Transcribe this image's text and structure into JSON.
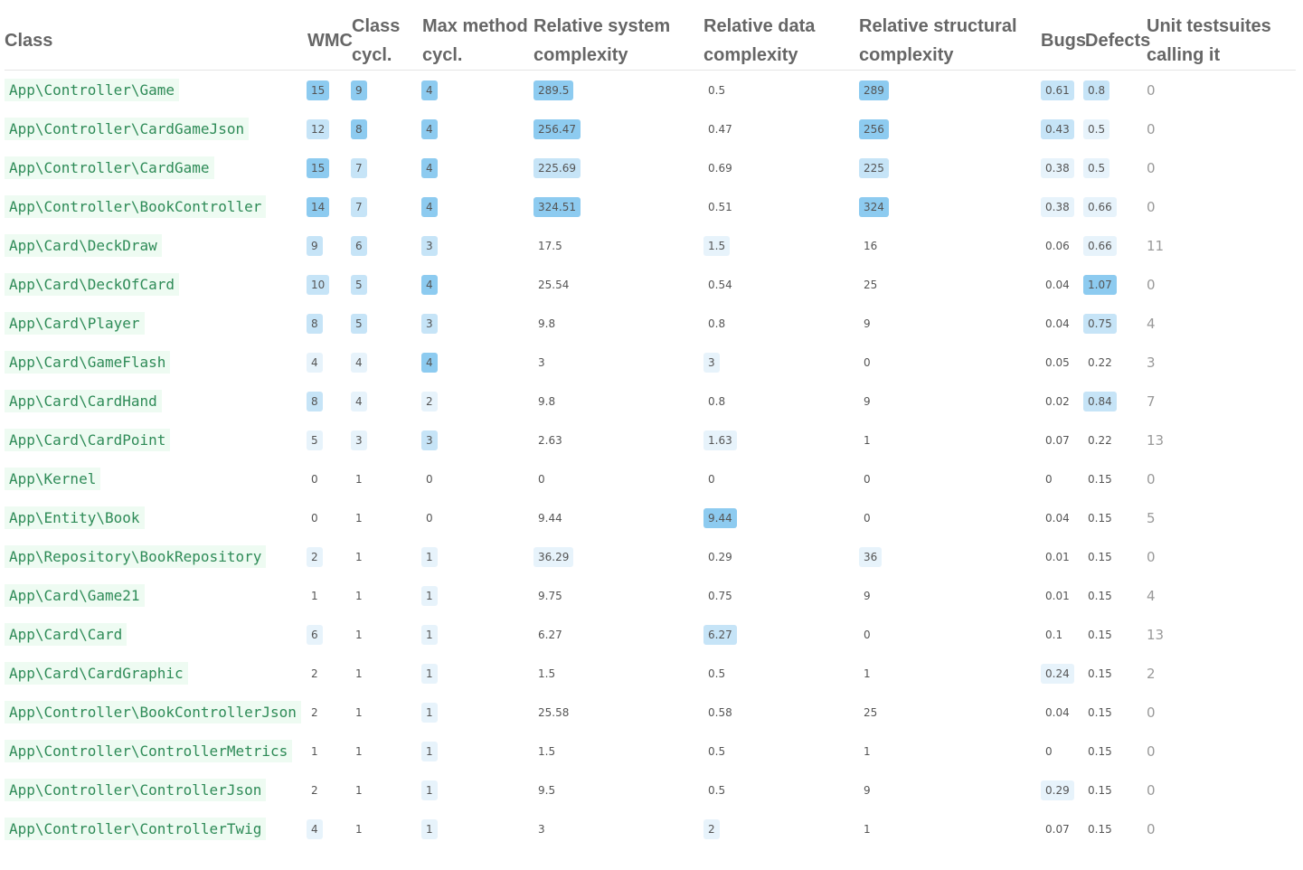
{
  "headers": {
    "class": "Class",
    "wmc": "WMC",
    "class_cycl": [
      "Class",
      "cycl."
    ],
    "max_method_cycl": [
      "Max method",
      "cycl."
    ],
    "rel_system": [
      "Relative system",
      "complexity"
    ],
    "rel_data": [
      "Relative data",
      "complexity"
    ],
    "rel_structural": [
      "Relative structural",
      "complexity"
    ],
    "bugs": "Bugs",
    "defects": "Defects",
    "unit_testsuites": [
      "Unit testsuites",
      "calling it"
    ]
  },
  "highlight_colors": {
    "none": "transparent",
    "light": "#e7f3fb",
    "medium": "#c6e4f7",
    "strong": "#8dcbf0",
    "class_text": "#2e8b57",
    "class_bg": "#eefbf2"
  },
  "rows": [
    {
      "class": "App\\Controller\\Game",
      "wmc": "15",
      "wmc_lvl": 3,
      "cc": "9",
      "cc_lvl": 3,
      "mmc": "4",
      "mmc_lvl": 3,
      "sys": "289.5",
      "sys_lvl": 3,
      "data": "0.5",
      "data_lvl": 0,
      "struct": "289",
      "struct_lvl": 3,
      "bugs": "0.61",
      "bugs_lvl": 2,
      "defects": "0.8",
      "defects_lvl": 2,
      "tests": "0"
    },
    {
      "class": "App\\Controller\\CardGameJson",
      "wmc": "12",
      "wmc_lvl": 2,
      "cc": "8",
      "cc_lvl": 3,
      "mmc": "4",
      "mmc_lvl": 3,
      "sys": "256.47",
      "sys_lvl": 3,
      "data": "0.47",
      "data_lvl": 0,
      "struct": "256",
      "struct_lvl": 3,
      "bugs": "0.43",
      "bugs_lvl": 2,
      "defects": "0.5",
      "defects_lvl": 1,
      "tests": "0"
    },
    {
      "class": "App\\Controller\\CardGame",
      "wmc": "15",
      "wmc_lvl": 3,
      "cc": "7",
      "cc_lvl": 2,
      "mmc": "4",
      "mmc_lvl": 3,
      "sys": "225.69",
      "sys_lvl": 2,
      "data": "0.69",
      "data_lvl": 0,
      "struct": "225",
      "struct_lvl": 2,
      "bugs": "0.38",
      "bugs_lvl": 1,
      "defects": "0.5",
      "defects_lvl": 1,
      "tests": "0"
    },
    {
      "class": "App\\Controller\\BookController",
      "wmc": "14",
      "wmc_lvl": 3,
      "cc": "7",
      "cc_lvl": 2,
      "mmc": "4",
      "mmc_lvl": 3,
      "sys": "324.51",
      "sys_lvl": 3,
      "data": "0.51",
      "data_lvl": 0,
      "struct": "324",
      "struct_lvl": 3,
      "bugs": "0.38",
      "bugs_lvl": 1,
      "defects": "0.66",
      "defects_lvl": 1,
      "tests": "0"
    },
    {
      "class": "App\\Card\\DeckDraw",
      "wmc": "9",
      "wmc_lvl": 2,
      "cc": "6",
      "cc_lvl": 2,
      "mmc": "3",
      "mmc_lvl": 2,
      "sys": "17.5",
      "sys_lvl": 0,
      "data": "1.5",
      "data_lvl": 1,
      "struct": "16",
      "struct_lvl": 0,
      "bugs": "0.06",
      "bugs_lvl": 0,
      "defects": "0.66",
      "defects_lvl": 1,
      "tests": "11"
    },
    {
      "class": "App\\Card\\DeckOfCard",
      "wmc": "10",
      "wmc_lvl": 2,
      "cc": "5",
      "cc_lvl": 2,
      "mmc": "4",
      "mmc_lvl": 3,
      "sys": "25.54",
      "sys_lvl": 0,
      "data": "0.54",
      "data_lvl": 0,
      "struct": "25",
      "struct_lvl": 0,
      "bugs": "0.04",
      "bugs_lvl": 0,
      "defects": "1.07",
      "defects_lvl": 3,
      "tests": "0"
    },
    {
      "class": "App\\Card\\Player",
      "wmc": "8",
      "wmc_lvl": 2,
      "cc": "5",
      "cc_lvl": 2,
      "mmc": "3",
      "mmc_lvl": 2,
      "sys": "9.8",
      "sys_lvl": 0,
      "data": "0.8",
      "data_lvl": 0,
      "struct": "9",
      "struct_lvl": 0,
      "bugs": "0.04",
      "bugs_lvl": 0,
      "defects": "0.75",
      "defects_lvl": 2,
      "tests": "4"
    },
    {
      "class": "App\\Card\\GameFlash",
      "wmc": "4",
      "wmc_lvl": 1,
      "cc": "4",
      "cc_lvl": 1,
      "mmc": "4",
      "mmc_lvl": 3,
      "sys": "3",
      "sys_lvl": 0,
      "data": "3",
      "data_lvl": 1,
      "struct": "0",
      "struct_lvl": 0,
      "bugs": "0.05",
      "bugs_lvl": 0,
      "defects": "0.22",
      "defects_lvl": 0,
      "tests": "3"
    },
    {
      "class": "App\\Card\\CardHand",
      "wmc": "8",
      "wmc_lvl": 2,
      "cc": "4",
      "cc_lvl": 1,
      "mmc": "2",
      "mmc_lvl": 1,
      "sys": "9.8",
      "sys_lvl": 0,
      "data": "0.8",
      "data_lvl": 0,
      "struct": "9",
      "struct_lvl": 0,
      "bugs": "0.02",
      "bugs_lvl": 0,
      "defects": "0.84",
      "defects_lvl": 2,
      "tests": "7"
    },
    {
      "class": "App\\Card\\CardPoint",
      "wmc": "5",
      "wmc_lvl": 1,
      "cc": "3",
      "cc_lvl": 1,
      "mmc": "3",
      "mmc_lvl": 2,
      "sys": "2.63",
      "sys_lvl": 0,
      "data": "1.63",
      "data_lvl": 1,
      "struct": "1",
      "struct_lvl": 0,
      "bugs": "0.07",
      "bugs_lvl": 0,
      "defects": "0.22",
      "defects_lvl": 0,
      "tests": "13"
    },
    {
      "class": "App\\Kernel",
      "wmc": "0",
      "wmc_lvl": 0,
      "cc": "1",
      "cc_lvl": 0,
      "mmc": "0",
      "mmc_lvl": 0,
      "sys": "0",
      "sys_lvl": 0,
      "data": "0",
      "data_lvl": 0,
      "struct": "0",
      "struct_lvl": 0,
      "bugs": "0",
      "bugs_lvl": 0,
      "defects": "0.15",
      "defects_lvl": 0,
      "tests": "0"
    },
    {
      "class": "App\\Entity\\Book",
      "wmc": "0",
      "wmc_lvl": 0,
      "cc": "1",
      "cc_lvl": 0,
      "mmc": "0",
      "mmc_lvl": 0,
      "sys": "9.44",
      "sys_lvl": 0,
      "data": "9.44",
      "data_lvl": 3,
      "struct": "0",
      "struct_lvl": 0,
      "bugs": "0.04",
      "bugs_lvl": 0,
      "defects": "0.15",
      "defects_lvl": 0,
      "tests": "5"
    },
    {
      "class": "App\\Repository\\BookRepository",
      "wmc": "2",
      "wmc_lvl": 1,
      "cc": "1",
      "cc_lvl": 0,
      "mmc": "1",
      "mmc_lvl": 1,
      "sys": "36.29",
      "sys_lvl": 1,
      "data": "0.29",
      "data_lvl": 0,
      "struct": "36",
      "struct_lvl": 1,
      "bugs": "0.01",
      "bugs_lvl": 0,
      "defects": "0.15",
      "defects_lvl": 0,
      "tests": "0"
    },
    {
      "class": "App\\Card\\Game21",
      "wmc": "1",
      "wmc_lvl": 0,
      "cc": "1",
      "cc_lvl": 0,
      "mmc": "1",
      "mmc_lvl": 1,
      "sys": "9.75",
      "sys_lvl": 0,
      "data": "0.75",
      "data_lvl": 0,
      "struct": "9",
      "struct_lvl": 0,
      "bugs": "0.01",
      "bugs_lvl": 0,
      "defects": "0.15",
      "defects_lvl": 0,
      "tests": "4"
    },
    {
      "class": "App\\Card\\Card",
      "wmc": "6",
      "wmc_lvl": 1,
      "cc": "1",
      "cc_lvl": 0,
      "mmc": "1",
      "mmc_lvl": 1,
      "sys": "6.27",
      "sys_lvl": 0,
      "data": "6.27",
      "data_lvl": 2,
      "struct": "0",
      "struct_lvl": 0,
      "bugs": "0.1",
      "bugs_lvl": 0,
      "defects": "0.15",
      "defects_lvl": 0,
      "tests": "13"
    },
    {
      "class": "App\\Card\\CardGraphic",
      "wmc": "2",
      "wmc_lvl": 0,
      "cc": "1",
      "cc_lvl": 0,
      "mmc": "1",
      "mmc_lvl": 1,
      "sys": "1.5",
      "sys_lvl": 0,
      "data": "0.5",
      "data_lvl": 0,
      "struct": "1",
      "struct_lvl": 0,
      "bugs": "0.24",
      "bugs_lvl": 1,
      "defects": "0.15",
      "defects_lvl": 0,
      "tests": "2"
    },
    {
      "class": "App\\Controller\\BookControllerJson",
      "wmc": "2",
      "wmc_lvl": 0,
      "cc": "1",
      "cc_lvl": 0,
      "mmc": "1",
      "mmc_lvl": 1,
      "sys": "25.58",
      "sys_lvl": 0,
      "data": "0.58",
      "data_lvl": 0,
      "struct": "25",
      "struct_lvl": 0,
      "bugs": "0.04",
      "bugs_lvl": 0,
      "defects": "0.15",
      "defects_lvl": 0,
      "tests": "0"
    },
    {
      "class": "App\\Controller\\ControllerMetrics",
      "wmc": "1",
      "wmc_lvl": 0,
      "cc": "1",
      "cc_lvl": 0,
      "mmc": "1",
      "mmc_lvl": 1,
      "sys": "1.5",
      "sys_lvl": 0,
      "data": "0.5",
      "data_lvl": 0,
      "struct": "1",
      "struct_lvl": 0,
      "bugs": "0",
      "bugs_lvl": 0,
      "defects": "0.15",
      "defects_lvl": 0,
      "tests": "0"
    },
    {
      "class": "App\\Controller\\ControllerJson",
      "wmc": "2",
      "wmc_lvl": 0,
      "cc": "1",
      "cc_lvl": 0,
      "mmc": "1",
      "mmc_lvl": 1,
      "sys": "9.5",
      "sys_lvl": 0,
      "data": "0.5",
      "data_lvl": 0,
      "struct": "9",
      "struct_lvl": 0,
      "bugs": "0.29",
      "bugs_lvl": 1,
      "defects": "0.15",
      "defects_lvl": 0,
      "tests": "0"
    },
    {
      "class": "App\\Controller\\ControllerTwig",
      "wmc": "4",
      "wmc_lvl": 1,
      "cc": "1",
      "cc_lvl": 0,
      "mmc": "1",
      "mmc_lvl": 1,
      "sys": "3",
      "sys_lvl": 0,
      "data": "2",
      "data_lvl": 1,
      "struct": "1",
      "struct_lvl": 0,
      "bugs": "0.07",
      "bugs_lvl": 0,
      "defects": "0.15",
      "defects_lvl": 0,
      "tests": "0"
    }
  ]
}
